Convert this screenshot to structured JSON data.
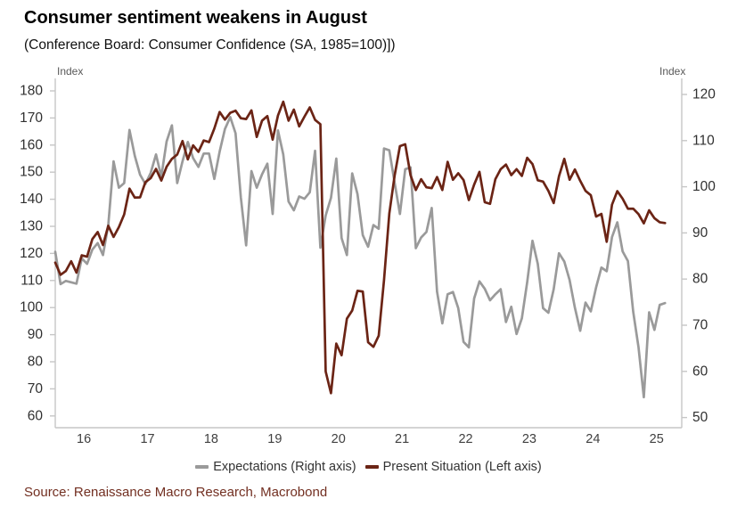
{
  "header": {
    "title": "Consumer sentiment weakens in August",
    "subtitle": "(Conference Board: Consumer Confidence (SA, 1985=100)])"
  },
  "footer": {
    "source": "Source: Renaissance Macro Research, Macrobond"
  },
  "legend": {
    "expectations_label": "Expectations (Right axis)",
    "present_label": "Present Situation (Left axis)"
  },
  "colors": {
    "expectations": "#9a9a9a",
    "present": "#6b2415",
    "axis_line": "#c6c6c6",
    "tick_text": "#303030",
    "x_text": "#404040",
    "source_text": "#722f21"
  },
  "chart_data": {
    "type": "line",
    "title": "Consumer sentiment weakens in August",
    "subtitle": "(Conference Board: Consumer Confidence (SA, 1985=100)])",
    "x_start": "2016-01",
    "x_end": "2025-08",
    "frequency": "monthly",
    "left_axis": {
      "label": "Index",
      "min": 60,
      "max": 180,
      "ticks": [
        180,
        170,
        160,
        150,
        140,
        130,
        120,
        110,
        100,
        90,
        80,
        70,
        60
      ]
    },
    "right_axis": {
      "label": "Index",
      "min": 50,
      "max": 120,
      "ticks": [
        120,
        110,
        100,
        90,
        80,
        70,
        60,
        50
      ]
    },
    "x_tick_labels": [
      "16",
      "17",
      "18",
      "19",
      "20",
      "21",
      "22",
      "23",
      "24",
      "25"
    ],
    "grid": false,
    "legend_position": "bottom",
    "series": [
      {
        "name": "Expectations (Right axis)",
        "axis": "right",
        "color": "#9a9a9a",
        "values": [
          85.9,
          78.9,
          79.6,
          79.3,
          79.0,
          84.5,
          83.3,
          86.4,
          87.8,
          85.2,
          91.7,
          105.5,
          99.8,
          100.8,
          112.3,
          106.7,
          102.6,
          100.6,
          103.0,
          107.0,
          102.2,
          109.8,
          113.3,
          100.8,
          105.5,
          109.7,
          106.2,
          104.3,
          107.2,
          107.2,
          101.7,
          107.6,
          112.5,
          115.1,
          111.6,
          97.7,
          87.3,
          103.4,
          99.8,
          102.7,
          105.0,
          94.1,
          112.2,
          107.0,
          96.8,
          94.9,
          97.9,
          97.4,
          98.8,
          107.8,
          86.8,
          93.8,
          97.6,
          106.1,
          88.9,
          85.2,
          102.9,
          98.4,
          89.5,
          87.0,
          91.7,
          90.9,
          108.3,
          107.9,
          100.9,
          94.1,
          103.8,
          104.2,
          86.7,
          89.0,
          90.2,
          95.4,
          77.3,
          70.4,
          76.7,
          77.2,
          73.7,
          66.4,
          65.2,
          75.8,
          79.5,
          77.9,
          75.4,
          76.7,
          77.8,
          70.7,
          74.0,
          68.1,
          71.5,
          79.3,
          88.3,
          83.3,
          73.7,
          72.7,
          77.8,
          85.6,
          83.8,
          79.8,
          73.8,
          68.8,
          74.9,
          73.0,
          78.2,
          82.5,
          81.7,
          89.1,
          92.3,
          86.0,
          83.9,
          72.9,
          65.2,
          54.4,
          72.8,
          69.0,
          74.4,
          74.8
        ]
      },
      {
        "name": "Present Situation (Left axis)",
        "axis": "left",
        "color": "#6b2415",
        "values": [
          116.6,
          112.1,
          113.5,
          117.1,
          112.9,
          119.3,
          118.8,
          125.3,
          127.9,
          123.1,
          130.2,
          126.1,
          129.7,
          134.4,
          143.9,
          140.6,
          140.7,
          146.3,
          147.8,
          151.2,
          146.9,
          152.0,
          154.9,
          156.5,
          161.5,
          154.7,
          159.9,
          157.5,
          161.7,
          161.1,
          166.1,
          172.2,
          169.4,
          171.9,
          172.7,
          169.9,
          169.6,
          172.8,
          163.0,
          169.0,
          170.7,
          162.0,
          170.9,
          176.0,
          169.0,
          173.1,
          166.9,
          170.5,
          173.9,
          169.3,
          167.7,
          76.4,
          68.4,
          86.7,
          82.4,
          95.9,
          98.9,
          106.2,
          105.9,
          87.2,
          85.5,
          89.6,
          110.1,
          134.7,
          148.7,
          159.6,
          160.3,
          148.9,
          143.4,
          147.4,
          144.4,
          144.1,
          148.2,
          143.4,
          153.8,
          147.2,
          149.6,
          147.1,
          139.7,
          145.4,
          150.1,
          138.9,
          138.3,
          147.4,
          151.1,
          152.8,
          148.9,
          151.1,
          148.6,
          155.3,
          153.0,
          147.0,
          146.5,
          143.1,
          138.6,
          148.5,
          154.9,
          147.2,
          151.0,
          146.8,
          143.1,
          141.5,
          133.6,
          134.6,
          124.3,
          138.0,
          143.0,
          140.2,
          136.5,
          136.5,
          134.5,
          131.1,
          135.9,
          133.0,
          131.5,
          131.2
        ]
      }
    ]
  }
}
